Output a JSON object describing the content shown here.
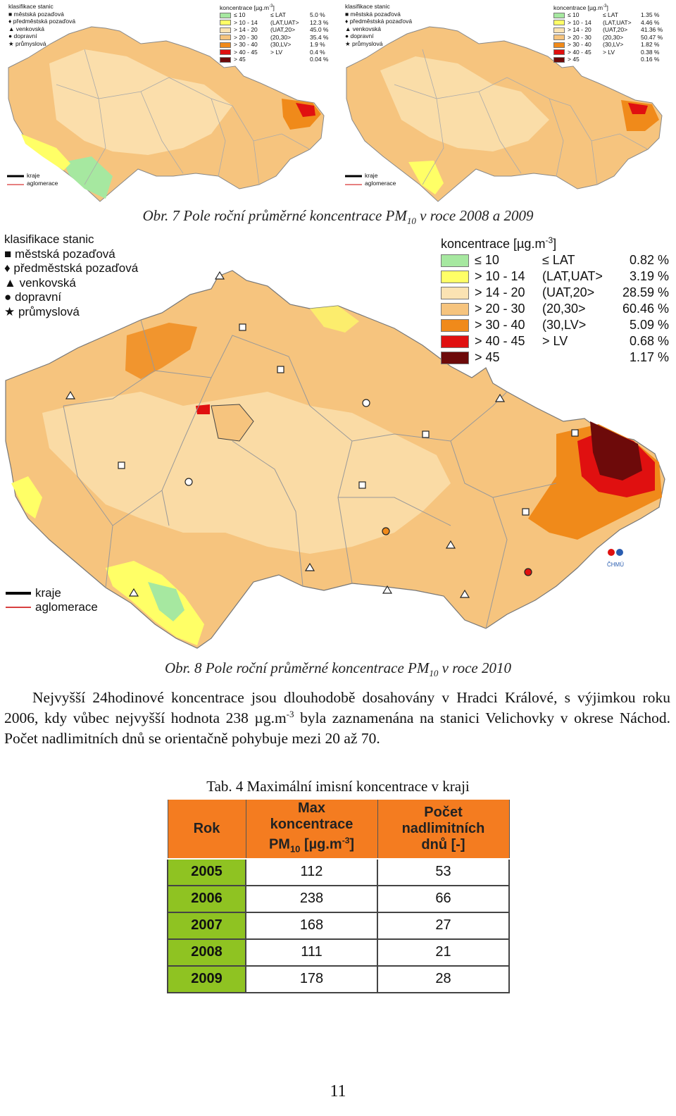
{
  "colors": {
    "le10": "#a6e8a0",
    "c10_14": "#ffff66",
    "c14_20": "#fbe3b3",
    "c20_30": "#f6c47e",
    "c30_40": "#f08a1a",
    "c40_45": "#e01010",
    "gt45": "#6d0a0a",
    "table_header": "#f47c20",
    "table_year": "#8fc322"
  },
  "map_small_2008": {
    "station_title": "klasifikace stanic",
    "stations": [
      {
        "label": "městská pozaďová",
        "icon": "square-icon"
      },
      {
        "label": "předměstská pozaďová",
        "icon": "diamond-icon"
      },
      {
        "label": "venkovská",
        "icon": "triangle-icon"
      },
      {
        "label": "dopravní",
        "icon": "circle-icon"
      },
      {
        "label": "průmyslová",
        "icon": "star-icon"
      }
    ],
    "conc_title": "koncentrace [µg.m",
    "conc_exp": "-3",
    "conc_close": "]",
    "classes": [
      {
        "range": "≤ 10",
        "limit": "≤ LAT",
        "pct": "5.0 %",
        "color": "#a6e8a0"
      },
      {
        "range": "> 10 - 14",
        "limit": "(LAT,UAT>",
        "pct": "12.3 %",
        "color": "#ffff66"
      },
      {
        "range": "> 14 - 20",
        "limit": "(UAT,20>",
        "pct": "45.0 %",
        "color": "#fbe3b3"
      },
      {
        "range": "> 20 - 30",
        "limit": "(20,30>",
        "pct": "35.4 %",
        "color": "#f6c47e"
      },
      {
        "range": "> 30 - 40",
        "limit": "(30,LV>",
        "pct": "1.9 %",
        "color": "#f08a1a"
      },
      {
        "range": "> 40 - 45",
        "limit": "> LV",
        "pct": "0.4 %",
        "color": "#e01010"
      },
      {
        "range": "> 45",
        "limit": "",
        "pct": "0.04 %",
        "color": "#6d0a0a"
      }
    ],
    "boundary_kraje": "kraje",
    "boundary_aglomerace": "aglomerace"
  },
  "map_small_2009": {
    "station_title": "klasifikace stanic",
    "stations": [
      {
        "label": "městská pozaďová",
        "icon": "square-icon"
      },
      {
        "label": "předměstská pozaďová",
        "icon": "diamond-icon"
      },
      {
        "label": "venkovská",
        "icon": "triangle-icon"
      },
      {
        "label": "dopravní",
        "icon": "circle-icon"
      },
      {
        "label": "průmyslová",
        "icon": "star-icon"
      }
    ],
    "conc_title": "koncentrace [µg.m",
    "conc_exp": "-3",
    "conc_close": "]",
    "classes": [
      {
        "range": "≤ 10",
        "limit": "≤ LAT",
        "pct": "1.35 %",
        "color": "#a6e8a0"
      },
      {
        "range": "> 10 - 14",
        "limit": "(LAT,UAT>",
        "pct": "4.46 %",
        "color": "#ffff66"
      },
      {
        "range": "> 14 - 20",
        "limit": "(UAT,20>",
        "pct": "41.36 %",
        "color": "#fbe3b3"
      },
      {
        "range": "> 20 - 30",
        "limit": "(20,30>",
        "pct": "50.47 %",
        "color": "#f6c47e"
      },
      {
        "range": "> 30 - 40",
        "limit": "(30,LV>",
        "pct": "1.82 %",
        "color": "#f08a1a"
      },
      {
        "range": "> 40 - 45",
        "limit": "> LV",
        "pct": "0.38 %",
        "color": "#e01010"
      },
      {
        "range": "> 45",
        "limit": "",
        "pct": "0.16 %",
        "color": "#6d0a0a"
      }
    ],
    "boundary_kraje": "kraje",
    "boundary_aglomerace": "aglomerace"
  },
  "caption7": {
    "prefix": "Obr. 7 Pole roční průměrné koncentrace PM",
    "sub": "10",
    "suffix": " v roce 2008 a 2009"
  },
  "map_big_2010": {
    "station_title": "klasifikace stanic",
    "stations": [
      {
        "label": "městská pozaďová",
        "icon": "square-icon"
      },
      {
        "label": "předměstská pozaďová",
        "icon": "diamond-icon"
      },
      {
        "label": "venkovská",
        "icon": "triangle-icon"
      },
      {
        "label": "dopravní",
        "icon": "circle-icon"
      },
      {
        "label": "průmyslová",
        "icon": "star-icon"
      }
    ],
    "conc_title": "koncentrace [µg.m",
    "conc_exp": "-3",
    "conc_close": "]",
    "classes": [
      {
        "range": "≤ 10",
        "limit": "≤ LAT",
        "pct": "0.82 %",
        "color": "#a6e8a0"
      },
      {
        "range": "> 10 - 14",
        "limit": "(LAT,UAT>",
        "pct": "3.19 %",
        "color": "#ffff66"
      },
      {
        "range": "> 14 - 20",
        "limit": "(UAT,20>",
        "pct": "28.59 %",
        "color": "#fbe3b3"
      },
      {
        "range": "> 20 - 30",
        "limit": "(20,30>",
        "pct": "60.46 %",
        "color": "#f6c47e"
      },
      {
        "range": "> 30 - 40",
        "limit": "(30,LV>",
        "pct": "5.09 %",
        "color": "#f08a1a"
      },
      {
        "range": "> 40 - 45",
        "limit": "> LV",
        "pct": "0.68 %",
        "color": "#e01010"
      },
      {
        "range": "> 45",
        "limit": "",
        "pct": "1.17 %",
        "color": "#6d0a0a"
      }
    ],
    "boundary_kraje": "kraje",
    "boundary_aglomerace": "aglomerace",
    "logo_text": "ČHMÚ"
  },
  "caption8": {
    "prefix": "Obr. 8 Pole roční průměrné koncentrace PM",
    "sub": "10",
    "suffix": " v roce 2010"
  },
  "paragraph": {
    "part1": "Nejvyšší 24hodinové koncentrace jsou dlouhodobě dosahovány v Hradci Králové, s výjimkou roku 2006, kdy vůbec nejvyšší hodnota 238 µg.m",
    "sup": "-3",
    "part2": " byla zaznamenána na stanici Velichovky v okrese Náchod. Počet nadlimitních dnů se orientačně pohybuje mezi 20 až 70."
  },
  "table_caption": "Tab. 4 Maximální imisní koncentrace v kraji",
  "table": {
    "h_rok": "Rok",
    "h_max_1": "Max",
    "h_max_2": "koncentrace",
    "h_max_pm": "PM",
    "h_max_sub": "10",
    "h_max_unit": " [µg.m",
    "h_max_sup": "-3",
    "h_max_close": "]",
    "h_pocet_1": "Počet",
    "h_pocet_2": "nadlimitních",
    "h_pocet_3": "dnů [-]",
    "rows": [
      {
        "rok": "2005",
        "max": "112",
        "pocet": "53"
      },
      {
        "rok": "2006",
        "max": "238",
        "pocet": "66"
      },
      {
        "rok": "2007",
        "max": "168",
        "pocet": "27"
      },
      {
        "rok": "2008",
        "max": "111",
        "pocet": "21"
      },
      {
        "rok": "2009",
        "max": "178",
        "pocet": "28"
      }
    ]
  },
  "page_number": "11"
}
